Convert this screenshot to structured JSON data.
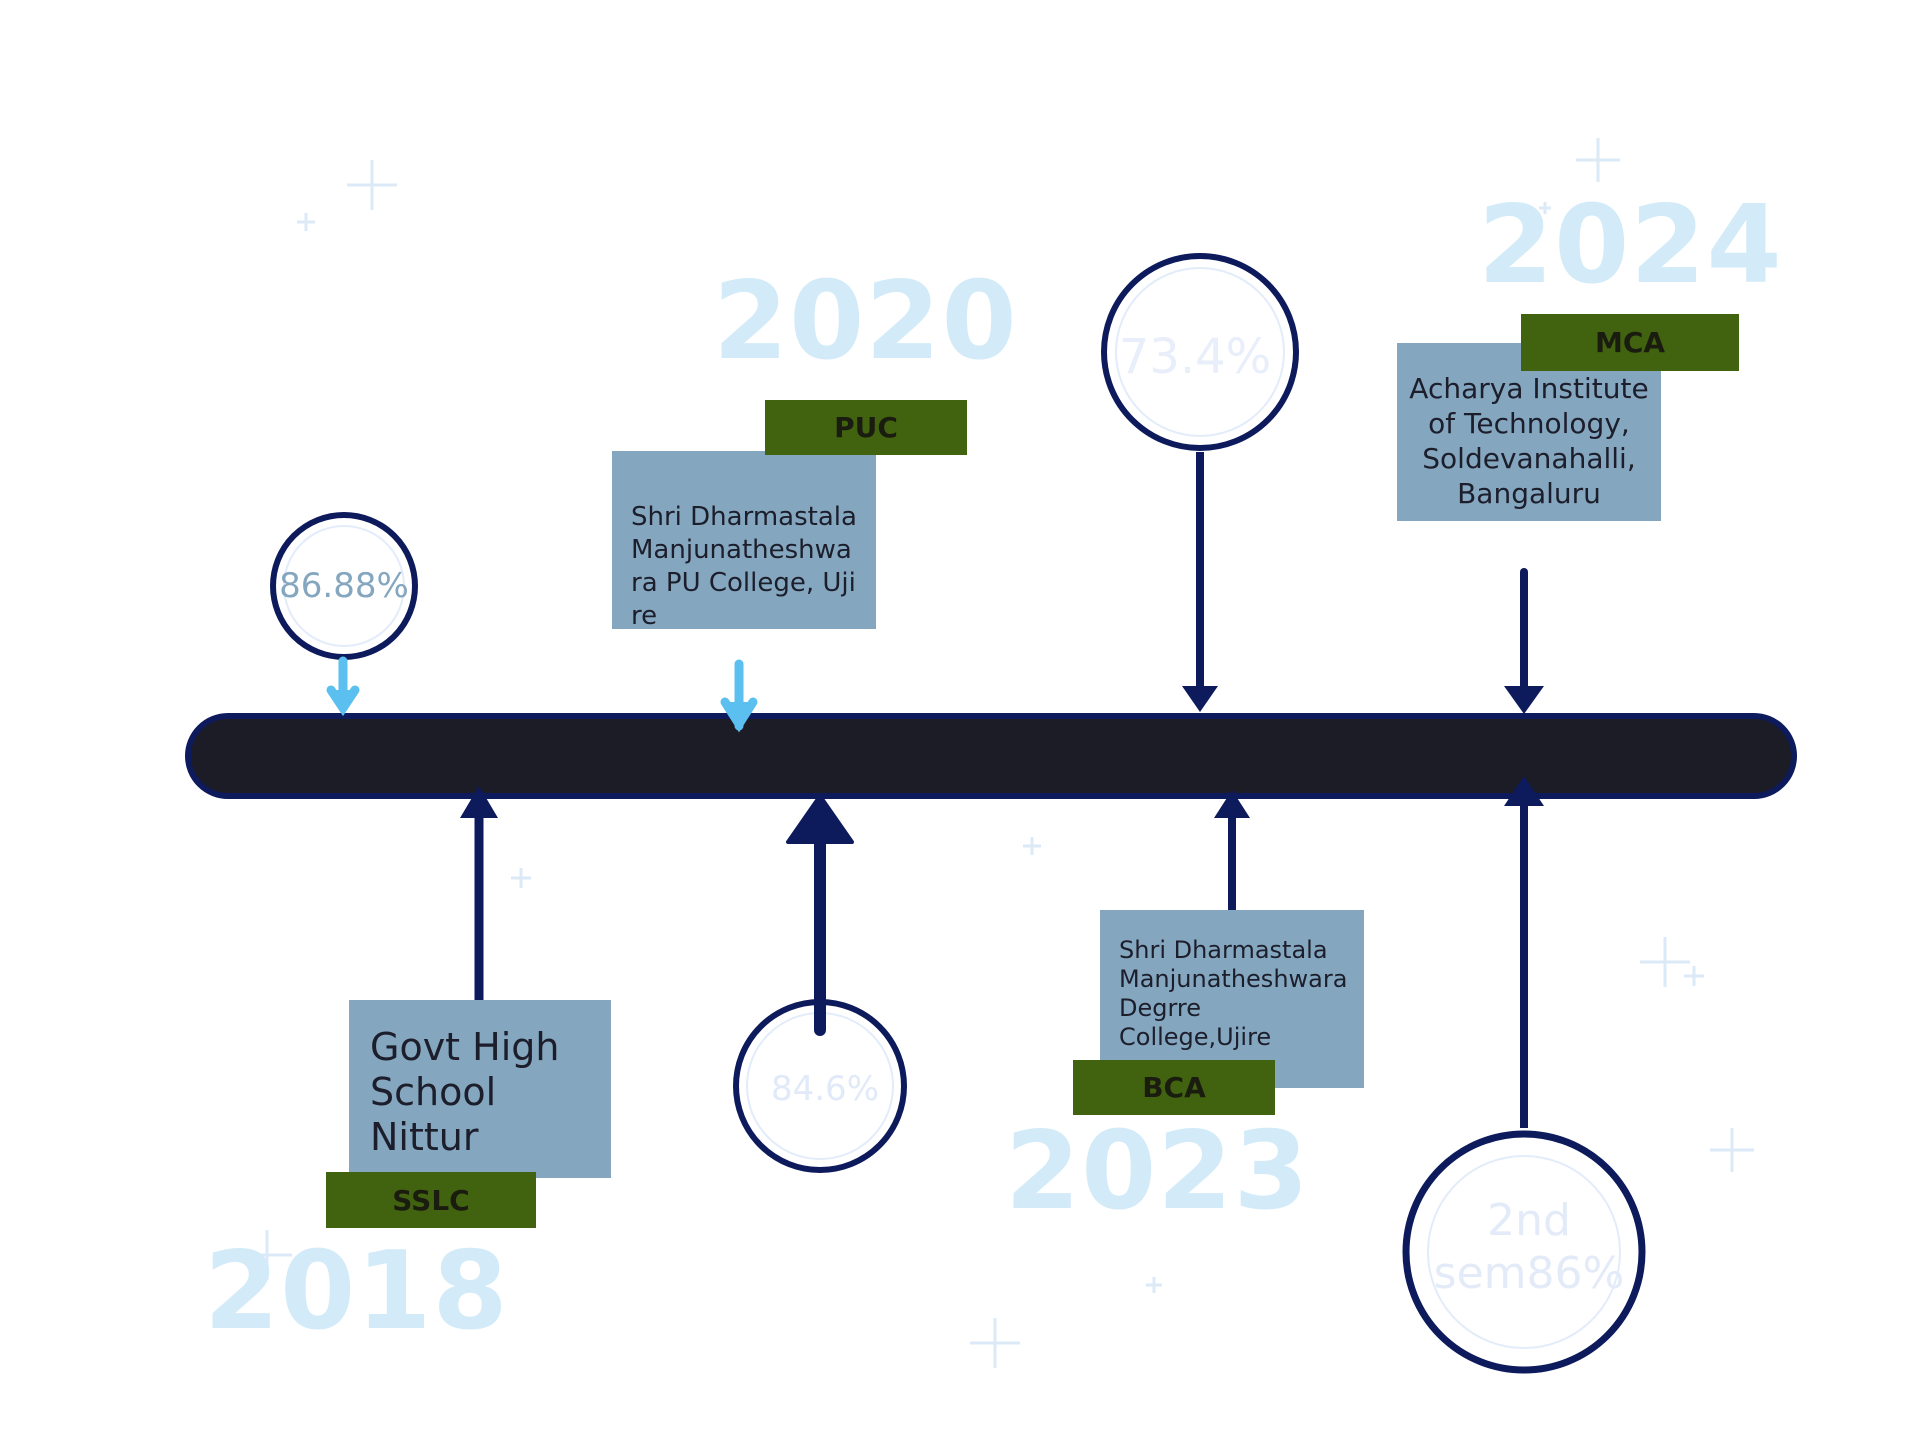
{
  "colors": {
    "navy": "#0d1a5b",
    "bar": "#1c1c27",
    "year": "#d3ebf8",
    "box": "#84a7bf",
    "tag": "#41630f",
    "arrow_light": "#5bc0f0",
    "sparkle": "#dce9f7"
  },
  "entries": [
    {
      "year": "2018",
      "tag": "SSLC",
      "institution": "Govt High School Nittur",
      "score": "86.88%"
    },
    {
      "year": "2020",
      "tag": "PUC",
      "institution": "Shri Dharmastala Manjunatheshwa ra PU  College, Ujire",
      "score": "84.6%"
    },
    {
      "year": "2023",
      "tag": "BCA",
      "institution": "Shri Dharmastala Manjunatheshwara Degrre College,Ujire",
      "score": "73.4%"
    },
    {
      "year": "2024",
      "tag": "MCA",
      "institution": "Acharya Institute of Technology, Soldevanahalli, Bangaluru",
      "score": "2nd sem86%"
    }
  ]
}
